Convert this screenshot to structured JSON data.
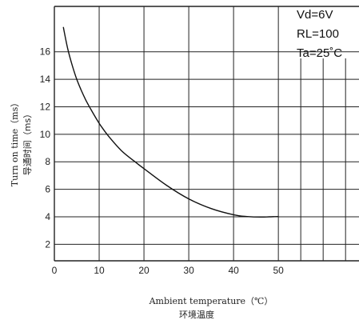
{
  "chart_data": {
    "type": "line",
    "title": "",
    "conditions": [
      "Vd=6V",
      "RL=100",
      "Ta=25˚C"
    ],
    "xlabel": "Ambient temperature（℃）",
    "xlabel_cn": "环境温度",
    "ylabel": "Turn on time（ms）",
    "ylabel_cn": "导通时间（ms）",
    "xlim": [
      0,
      68
    ],
    "ylim": [
      0.8,
      19.3
    ],
    "x_ticks": [
      0,
      10,
      20,
      30,
      40,
      50
    ],
    "x_tick_labels": [
      "0",
      "10",
      "20",
      "30",
      "40",
      "50"
    ],
    "y_ticks": [
      2,
      4,
      6,
      8,
      10,
      12,
      14,
      16
    ],
    "y_tick_labels": [
      "2",
      "4",
      "6",
      "8",
      "10",
      "12",
      "14",
      "16"
    ],
    "grid": true,
    "series": [
      {
        "x": [
          2,
          3,
          4,
          5,
          6,
          7,
          8,
          10,
          12,
          15,
          18,
          20,
          25,
          30,
          35,
          40,
          43,
          46,
          48,
          50
        ],
        "y": [
          17.8,
          16.2,
          15.0,
          14.0,
          13.2,
          12.5,
          11.9,
          10.8,
          9.9,
          8.8,
          8.0,
          7.5,
          6.3,
          5.3,
          4.6,
          4.15,
          4.02,
          3.98,
          4.0,
          4.02
        ]
      }
    ]
  }
}
